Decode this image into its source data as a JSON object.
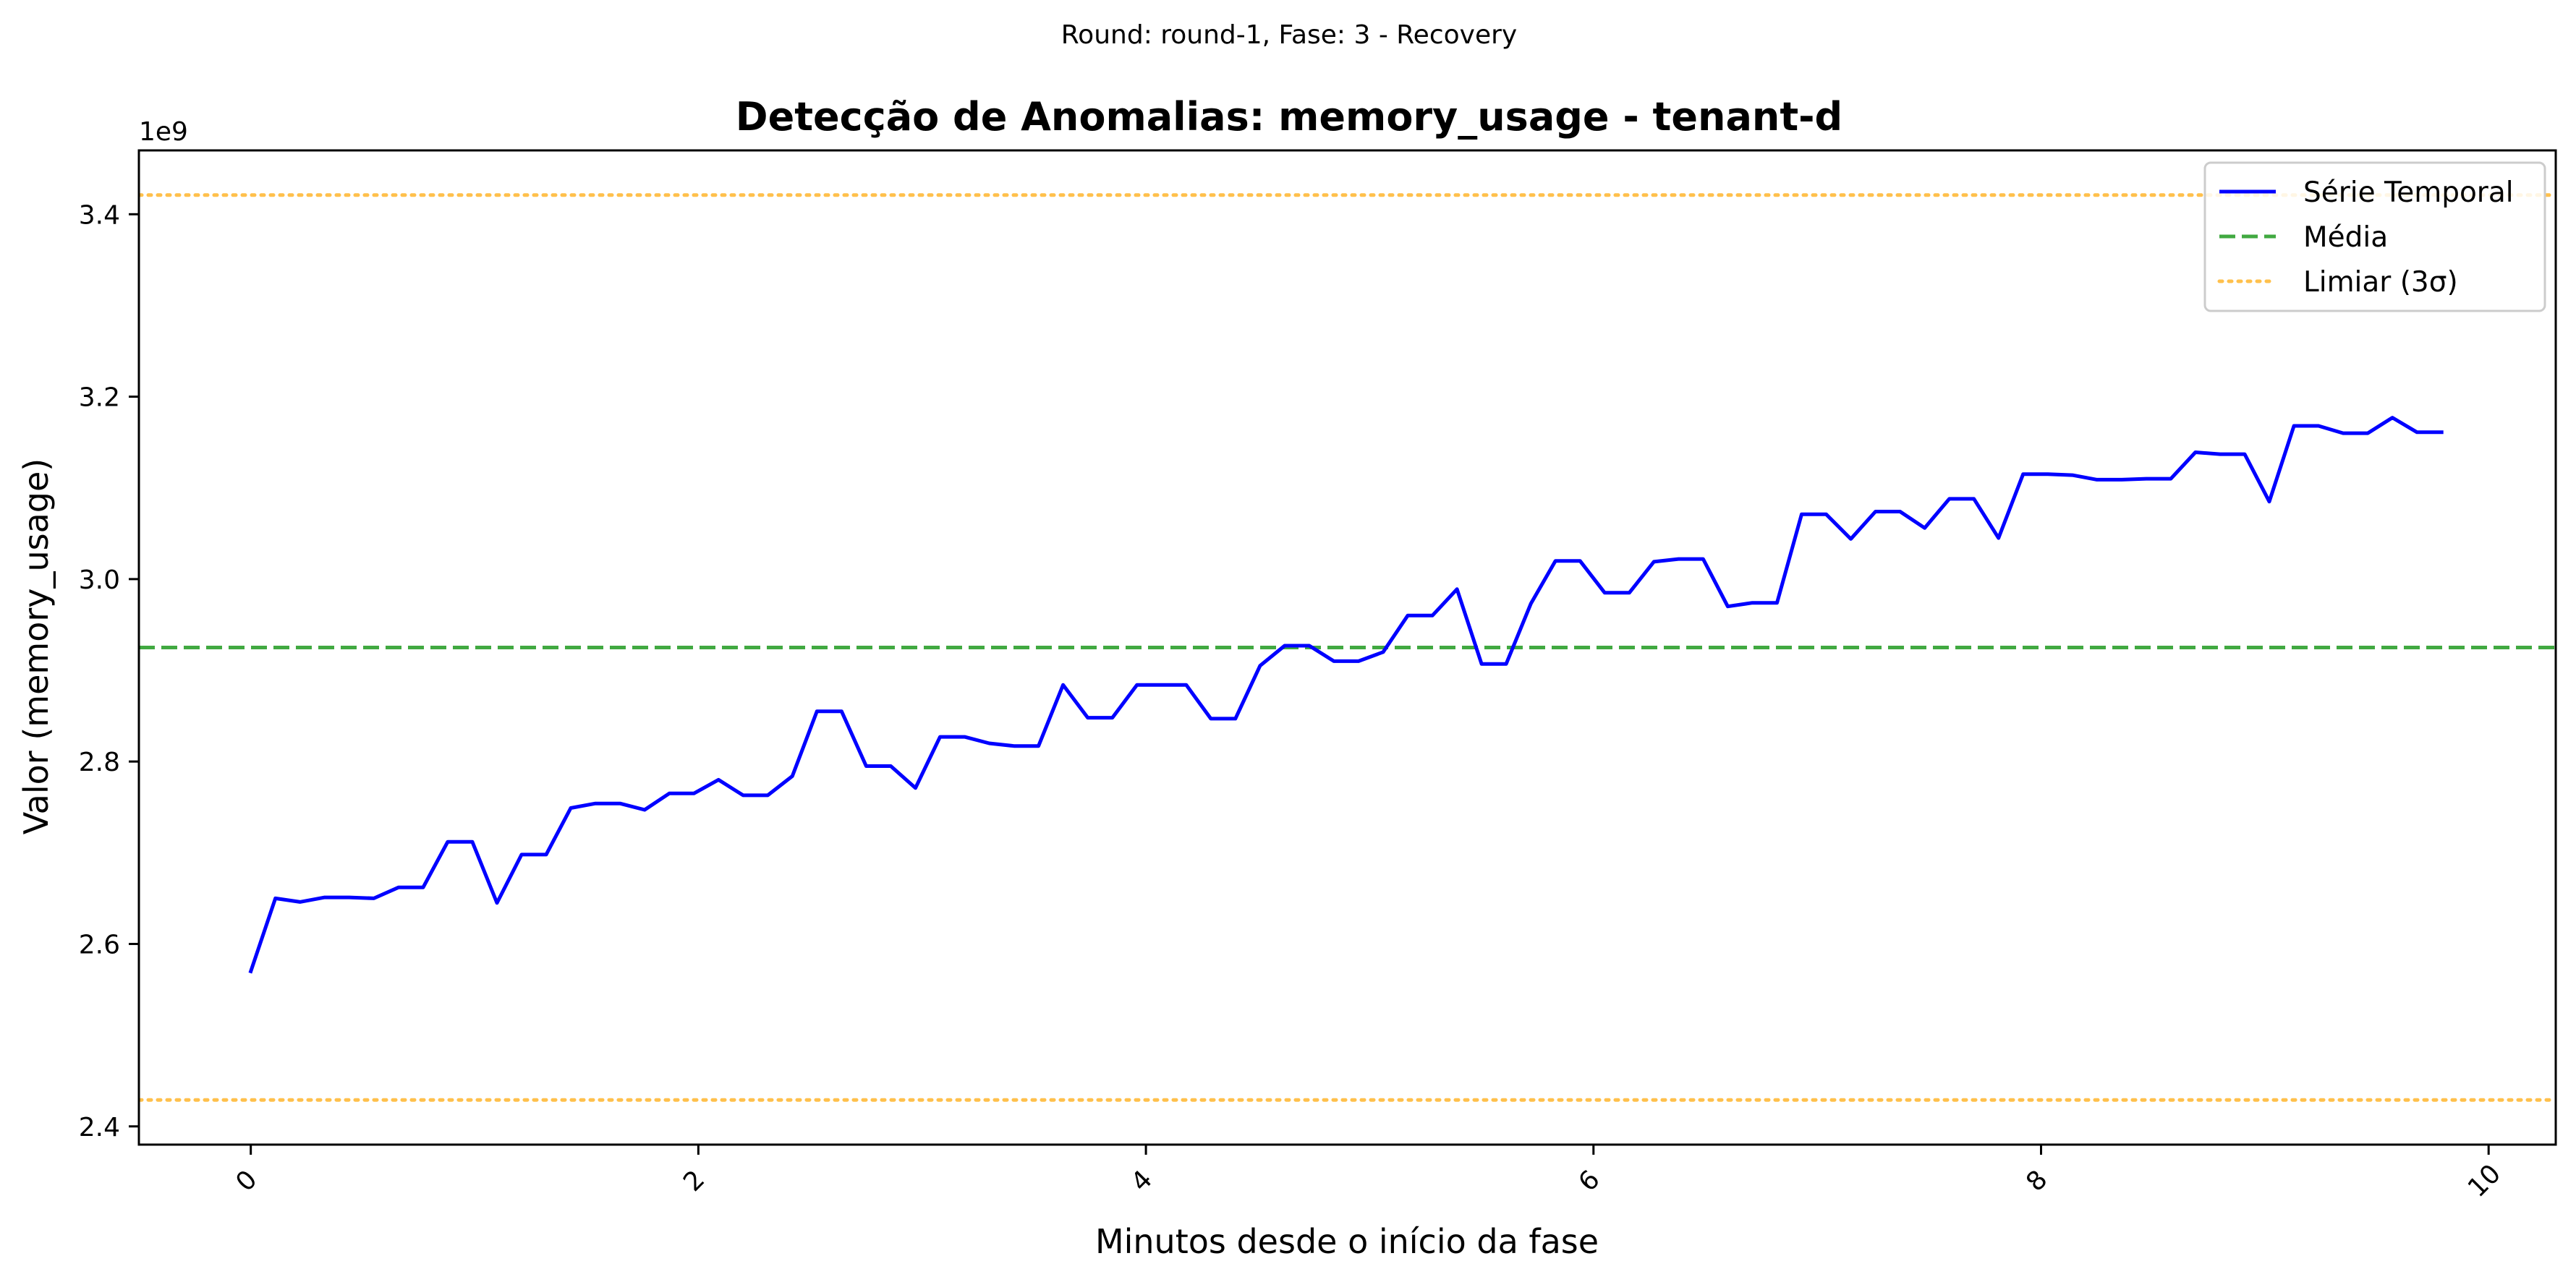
{
  "chart_data": {
    "type": "line",
    "suptitle": "Round: round-1, Fase: 3 - Recovery",
    "title": "Detecção de Anomalias: memory_usage - tenant-d",
    "xlabel": "Minutos desde o início da fase",
    "ylabel": "Valor (memory_usage)",
    "y_offset_label": "1e9",
    "xlim": [
      -0.5,
      10.3
    ],
    "ylim": [
      2.38,
      3.47
    ],
    "x_ticks": [
      0,
      2,
      4,
      6,
      8,
      10
    ],
    "x_tick_labels": [
      "0",
      "2",
      "4",
      "6",
      "8",
      "10"
    ],
    "y_ticks": [
      2.4,
      2.6,
      2.8,
      3.0,
      3.2,
      3.4
    ],
    "y_tick_labels": [
      "2.4",
      "2.6",
      "2.8",
      "3.0",
      "3.2",
      "3.4"
    ],
    "grid": false,
    "legend_position": "top-right",
    "series": [
      {
        "name": "Série Temporal",
        "color": "#0000ff",
        "style": "solid",
        "x": [
          0.0,
          0.11,
          0.22,
          0.33,
          0.44,
          0.55,
          0.66,
          0.77,
          0.88,
          0.99,
          1.1,
          1.21,
          1.32,
          1.43,
          1.54,
          1.65,
          1.76,
          1.87,
          1.98,
          2.09,
          2.2,
          2.31,
          2.42,
          2.53,
          2.64,
          2.75,
          2.86,
          2.97,
          3.08,
          3.19,
          3.3,
          3.41,
          3.52,
          3.63,
          3.74,
          3.85,
          3.96,
          4.07,
          4.18,
          4.29,
          4.4,
          4.51,
          4.62,
          4.73,
          4.84,
          4.95,
          5.06,
          5.17,
          5.28,
          5.39,
          5.5,
          5.61,
          5.72,
          5.83,
          5.94,
          6.05,
          6.16,
          6.27,
          6.38,
          6.49,
          6.6,
          6.71,
          6.82,
          6.93,
          7.04,
          7.15,
          7.26,
          7.37,
          7.48,
          7.59,
          7.7,
          7.81,
          7.92,
          8.03,
          8.14,
          8.25,
          8.36,
          8.47,
          8.58,
          8.69,
          8.8,
          8.91,
          9.02,
          9.13,
          9.24,
          9.35,
          9.46,
          9.57,
          9.68,
          9.79
        ],
        "values": [
          2.57,
          2.65,
          2.646,
          2.651,
          2.651,
          2.65,
          2.662,
          2.662,
          2.712,
          2.712,
          2.645,
          2.698,
          2.698,
          2.749,
          2.754,
          2.754,
          2.747,
          2.765,
          2.765,
          2.78,
          2.763,
          2.763,
          2.784,
          2.855,
          2.855,
          2.795,
          2.795,
          2.771,
          2.827,
          2.827,
          2.82,
          2.817,
          2.817,
          2.884,
          2.848,
          2.848,
          2.884,
          2.884,
          2.884,
          2.847,
          2.847,
          2.905,
          2.927,
          2.927,
          2.91,
          2.91,
          2.92,
          2.96,
          2.96,
          2.989,
          2.907,
          2.907,
          2.973,
          3.02,
          3.02,
          2.985,
          2.985,
          3.019,
          3.022,
          3.022,
          2.97,
          2.974,
          2.974,
          3.071,
          3.071,
          3.044,
          3.074,
          3.074,
          3.056,
          3.088,
          3.088,
          3.045,
          3.115,
          3.115,
          3.114,
          3.109,
          3.109,
          3.11,
          3.11,
          3.139,
          3.137,
          3.137,
          3.085,
          3.168,
          3.168,
          3.16,
          3.16,
          3.177,
          3.161,
          3.161
        ]
      },
      {
        "name": "Média",
        "color": "#2ca02c",
        "style": "dashed",
        "value": 2.925
      },
      {
        "name": "Limiar (3σ)",
        "color": "#ffa500",
        "style": "dotted",
        "values": [
          3.421,
          2.429
        ]
      }
    ]
  }
}
